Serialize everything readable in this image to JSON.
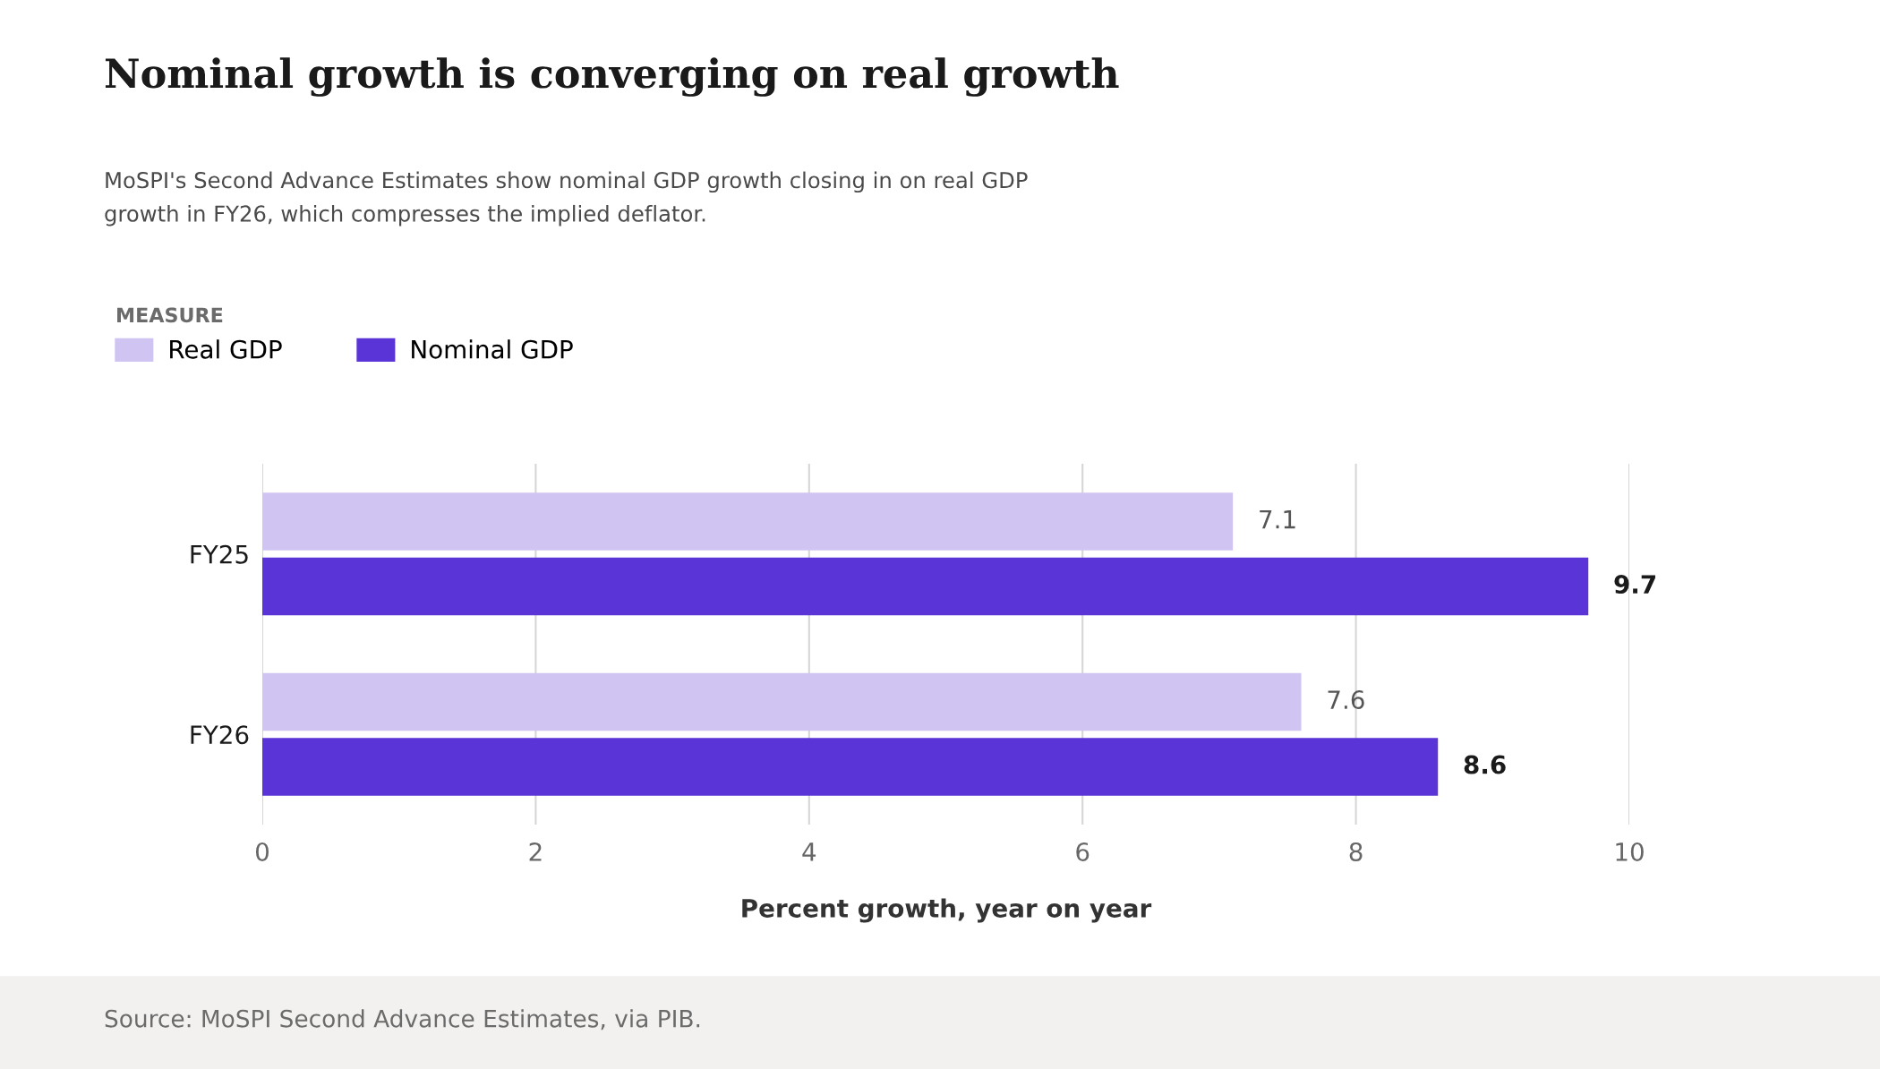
{
  "chart_data": {
    "type": "bar",
    "orientation": "horizontal",
    "title": "Nominal growth is converging on real growth",
    "subtitle": "MoSPI's Second Advance Estimates show nominal GDP growth closing in on real GDP\ngrowth in FY26, which compresses the implied deflator.",
    "legend_title": "MEASURE",
    "legend": "top left",
    "categories": [
      "FY25",
      "FY26"
    ],
    "series": [
      {
        "name": "Real GDP",
        "color": "#d0c4f2",
        "values": [
          7.1,
          7.6
        ]
      },
      {
        "name": "Nominal GDP",
        "color": "#5a34d6",
        "values": [
          9.7,
          8.6
        ]
      }
    ],
    "xlim": [
      0,
      10
    ],
    "xticks": [
      0,
      2,
      4,
      6,
      8,
      10
    ],
    "grid": "x",
    "data_labels": true,
    "xlabel": "Percent growth, year on year",
    "annotations": [
      "Source: MoSPI Second Advance Estimates, via PIB."
    ]
  }
}
